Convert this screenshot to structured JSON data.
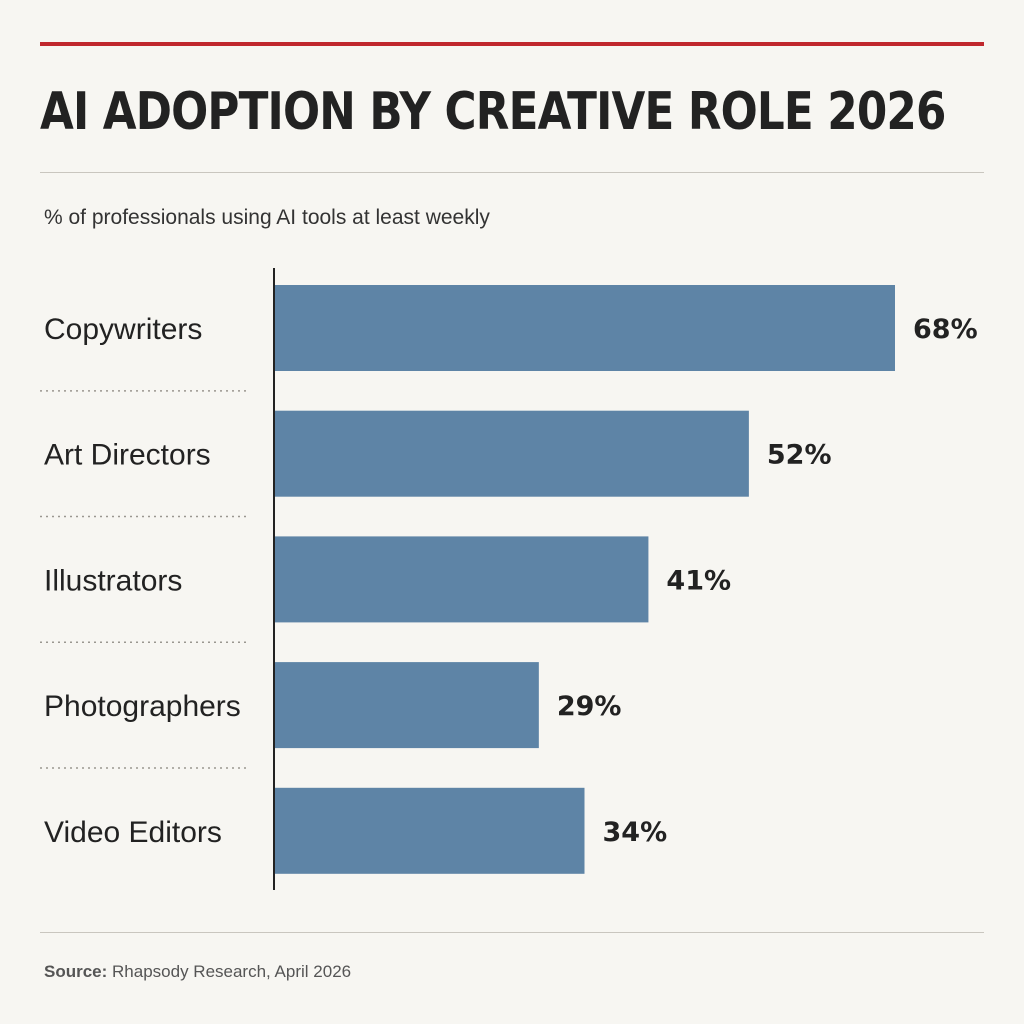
{
  "colors": {
    "accent_rule": "#c0272d",
    "bar": "#5e84a6",
    "text": "#222222",
    "background": "#f7f6f2"
  },
  "header": {
    "title": "AI ADOPTION BY CREATIVE ROLE 2026",
    "subtitle": "% of professionals using AI tools at least weekly"
  },
  "footer": {
    "source_label": "Source:",
    "source_text": " Rhapsody Research, April 2026"
  },
  "chart_data": {
    "type": "bar",
    "orientation": "horizontal",
    "title": "AI ADOPTION BY CREATIVE ROLE 2026",
    "subtitle": "% of professionals using AI tools at least weekly",
    "categories": [
      "Copywriters",
      "Art Directors",
      "Illustrators",
      "Photographers",
      "Video Editors"
    ],
    "values": [
      68,
      52,
      41,
      29,
      34
    ],
    "value_labels": [
      "68%",
      "52%",
      "41%",
      "29%",
      "34%"
    ],
    "unit": "%",
    "xlim": [
      0,
      68
    ],
    "xlabel": "",
    "ylabel": "",
    "grid": false,
    "legend": "none"
  }
}
